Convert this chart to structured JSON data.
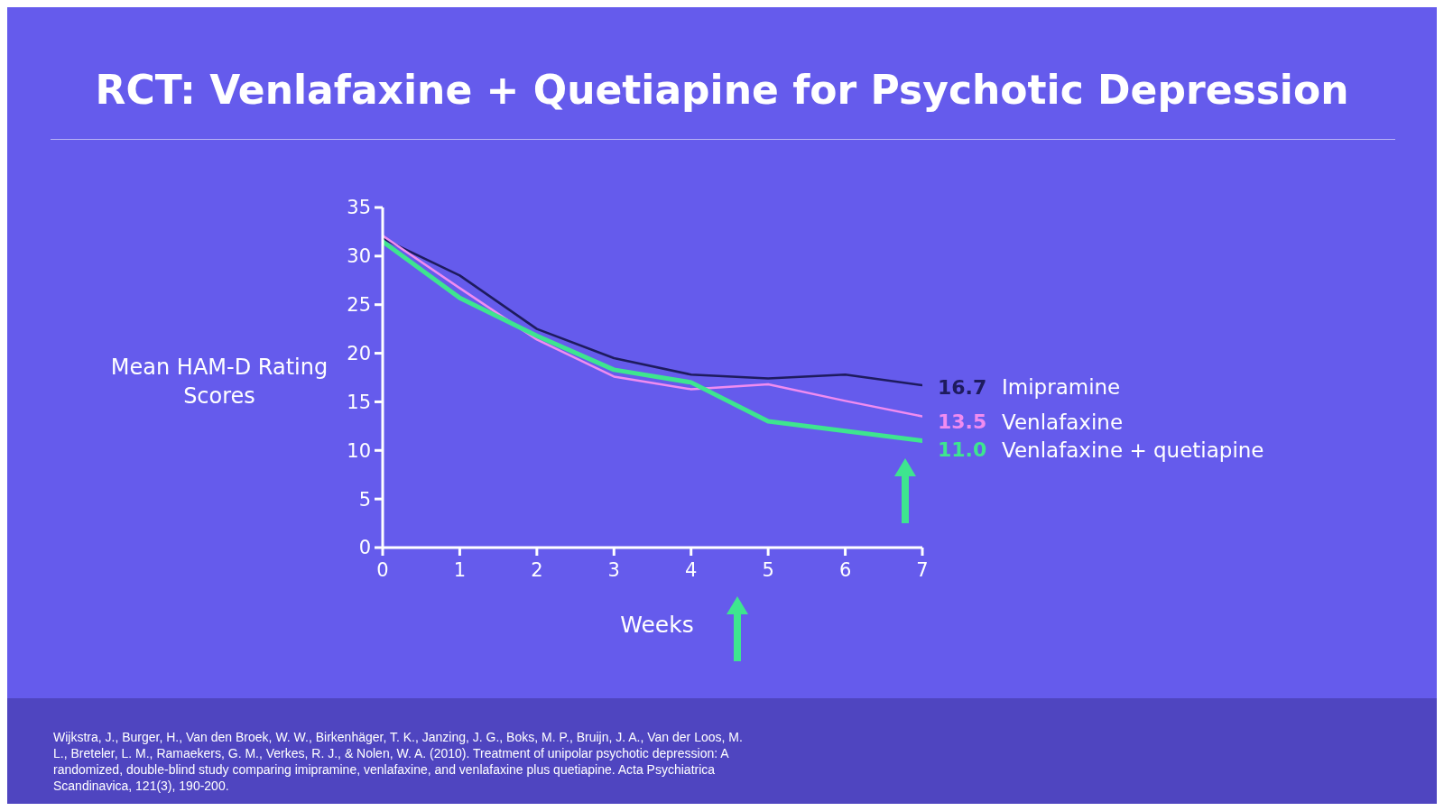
{
  "chart_data": {
    "type": "line",
    "title": "RCT: Venlafaxine + Quetiapine for Psychotic Depression",
    "xlabel": "Weeks",
    "ylabel": "Mean HAM-D Rating Scores",
    "x": [
      0,
      1,
      2,
      3,
      4,
      5,
      6,
      7
    ],
    "xlim": [
      0,
      7
    ],
    "xticks": [
      0,
      1,
      2,
      3,
      4,
      5,
      6,
      7
    ],
    "ylim": [
      0,
      35
    ],
    "yticks": [
      0,
      5,
      10,
      15,
      20,
      25,
      30,
      35
    ],
    "grid": false,
    "legend": false,
    "marker": "none",
    "line_style": "solid",
    "series": [
      {
        "name": "Imipramine",
        "color": "#1e1b5e",
        "values": [
          31.8,
          28.0,
          22.5,
          19.5,
          17.8,
          17.4,
          17.8,
          16.7
        ],
        "value_labels": [
          null,
          null,
          null,
          null,
          null,
          null,
          null,
          "16.7"
        ]
      },
      {
        "name": "Venlafaxine",
        "color": "#f08cf0",
        "values": [
          32.1,
          26.7,
          21.4,
          17.6,
          16.3,
          16.8,
          15.1,
          13.5
        ],
        "value_labels": [
          null,
          null,
          null,
          null,
          null,
          null,
          null,
          "13.5"
        ]
      },
      {
        "name": "Venlafaxine + quetiapine",
        "color": "#3ee58f",
        "values": [
          31.5,
          25.7,
          21.8,
          18.3,
          17.0,
          13.0,
          12.0,
          11.0
        ],
        "value_labels": [
          null,
          null,
          null,
          null,
          null,
          null,
          null,
          "11.0"
        ]
      }
    ],
    "annotations": [
      "Wijkstra, J., Burger, H., Van den Broek, W. W., Birkenhäger, T. K., Janzing, J. G., Boks, M. P., Bruijn, J. A., Van der Loos, M. L., Breteler, L. M., Ramaekers, G. M., Verkes, R. J., & Nolen, W. A. (2010). Treatment of unipolar psychotic depression: A randomized, double-blind study comparing imipramine, venlafaxine, and venlafaxine plus quetiapine. Acta Psychiatrica Scandinavica, 121(3), 190-200."
    ]
  }
}
